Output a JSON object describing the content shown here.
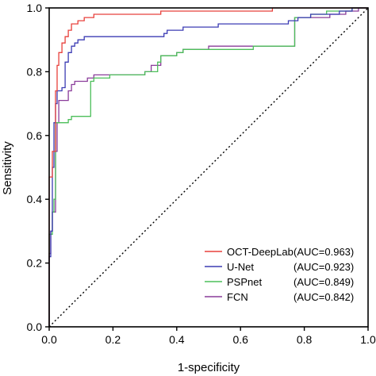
{
  "chart_data": {
    "type": "line",
    "xlabel": "1-specificity",
    "ylabel": "Sensitivity",
    "xlim": [
      0,
      1
    ],
    "ylim": [
      0,
      1
    ],
    "x_ticks": [
      "0.0",
      "0.2",
      "0.4",
      "0.6",
      "0.8",
      "1.0"
    ],
    "y_ticks": [
      "0.0",
      "0.2",
      "0.4",
      "0.6",
      "0.8",
      "1.0"
    ],
    "grid": false,
    "legend_position": "bottom-right",
    "reference_line": {
      "style": "dotted",
      "color": "#000000",
      "points": [
        [
          0,
          0
        ],
        [
          1,
          1
        ]
      ]
    },
    "series": [
      {
        "label_name": "OCT-DeepLab",
        "label_auc": "(AUC=0.963)",
        "color": "#e8413c",
        "points": [
          [
            0,
            0
          ],
          [
            0,
            0.47
          ],
          [
            0.01,
            0.47
          ],
          [
            0.01,
            0.55
          ],
          [
            0.02,
            0.55
          ],
          [
            0.02,
            0.74
          ],
          [
            0.025,
            0.74
          ],
          [
            0.025,
            0.82
          ],
          [
            0.03,
            0.82
          ],
          [
            0.03,
            0.86
          ],
          [
            0.04,
            0.86
          ],
          [
            0.04,
            0.89
          ],
          [
            0.05,
            0.89
          ],
          [
            0.05,
            0.91
          ],
          [
            0.06,
            0.91
          ],
          [
            0.06,
            0.93
          ],
          [
            0.07,
            0.93
          ],
          [
            0.07,
            0.95
          ],
          [
            0.09,
            0.95
          ],
          [
            0.09,
            0.96
          ],
          [
            0.11,
            0.96
          ],
          [
            0.11,
            0.97
          ],
          [
            0.14,
            0.97
          ],
          [
            0.14,
            0.98
          ],
          [
            0.35,
            0.98
          ],
          [
            0.35,
            0.99
          ],
          [
            0.7,
            0.99
          ],
          [
            0.7,
            1.0
          ],
          [
            1,
            1
          ]
        ]
      },
      {
        "label_name": "U-Net",
        "label_auc": "(AUC=0.923)",
        "color": "#3c3cb4",
        "points": [
          [
            0,
            0
          ],
          [
            0,
            0.22
          ],
          [
            0.005,
            0.22
          ],
          [
            0.005,
            0.3
          ],
          [
            0.01,
            0.3
          ],
          [
            0.01,
            0.5
          ],
          [
            0.015,
            0.5
          ],
          [
            0.015,
            0.64
          ],
          [
            0.02,
            0.64
          ],
          [
            0.02,
            0.7
          ],
          [
            0.025,
            0.7
          ],
          [
            0.025,
            0.74
          ],
          [
            0.04,
            0.74
          ],
          [
            0.04,
            0.75
          ],
          [
            0.05,
            0.75
          ],
          [
            0.05,
            0.83
          ],
          [
            0.06,
            0.83
          ],
          [
            0.06,
            0.86
          ],
          [
            0.07,
            0.86
          ],
          [
            0.07,
            0.88
          ],
          [
            0.08,
            0.88
          ],
          [
            0.08,
            0.89
          ],
          [
            0.09,
            0.89
          ],
          [
            0.09,
            0.9
          ],
          [
            0.11,
            0.9
          ],
          [
            0.11,
            0.91
          ],
          [
            0.36,
            0.91
          ],
          [
            0.36,
            0.92
          ],
          [
            0.37,
            0.92
          ],
          [
            0.37,
            0.93
          ],
          [
            0.42,
            0.93
          ],
          [
            0.42,
            0.94
          ],
          [
            0.53,
            0.94
          ],
          [
            0.53,
            0.95
          ],
          [
            0.75,
            0.95
          ],
          [
            0.75,
            0.96
          ],
          [
            0.78,
            0.96
          ],
          [
            0.78,
            0.97
          ],
          [
            0.82,
            0.97
          ],
          [
            0.82,
            0.98
          ],
          [
            0.91,
            0.98
          ],
          [
            0.91,
            0.99
          ],
          [
            0.95,
            0.99
          ],
          [
            0.95,
            1.0
          ],
          [
            1,
            1
          ]
        ]
      },
      {
        "label_name": "PSPnet",
        "label_auc": "(AUC=0.849)",
        "color": "#4cbf5a",
        "points": [
          [
            0,
            0
          ],
          [
            0,
            0.29
          ],
          [
            0.01,
            0.29
          ],
          [
            0.01,
            0.36
          ],
          [
            0.015,
            0.36
          ],
          [
            0.015,
            0.4
          ],
          [
            0.02,
            0.4
          ],
          [
            0.02,
            0.64
          ],
          [
            0.06,
            0.64
          ],
          [
            0.06,
            0.65
          ],
          [
            0.07,
            0.65
          ],
          [
            0.07,
            0.66
          ],
          [
            0.13,
            0.66
          ],
          [
            0.13,
            0.77
          ],
          [
            0.14,
            0.77
          ],
          [
            0.14,
            0.78
          ],
          [
            0.19,
            0.78
          ],
          [
            0.19,
            0.79
          ],
          [
            0.3,
            0.79
          ],
          [
            0.3,
            0.8
          ],
          [
            0.34,
            0.8
          ],
          [
            0.34,
            0.83
          ],
          [
            0.35,
            0.83
          ],
          [
            0.35,
            0.85
          ],
          [
            0.4,
            0.85
          ],
          [
            0.4,
            0.86
          ],
          [
            0.42,
            0.86
          ],
          [
            0.42,
            0.87
          ],
          [
            0.64,
            0.87
          ],
          [
            0.64,
            0.88
          ],
          [
            0.77,
            0.88
          ],
          [
            0.77,
            0.97
          ],
          [
            0.82,
            0.97
          ],
          [
            0.82,
            0.98
          ],
          [
            0.87,
            0.98
          ],
          [
            0.87,
            0.99
          ],
          [
            0.95,
            0.99
          ],
          [
            0.95,
            1.0
          ],
          [
            1,
            1
          ]
        ]
      },
      {
        "label_name": "FCN",
        "label_auc": "(AUC=0.842)",
        "color": "#8a3c9a",
        "points": [
          [
            0,
            0
          ],
          [
            0,
            0.23
          ],
          [
            0.005,
            0.23
          ],
          [
            0.005,
            0.3
          ],
          [
            0.01,
            0.3
          ],
          [
            0.01,
            0.36
          ],
          [
            0.02,
            0.36
          ],
          [
            0.02,
            0.55
          ],
          [
            0.025,
            0.55
          ],
          [
            0.025,
            0.64
          ],
          [
            0.03,
            0.64
          ],
          [
            0.03,
            0.71
          ],
          [
            0.06,
            0.71
          ],
          [
            0.06,
            0.74
          ],
          [
            0.07,
            0.74
          ],
          [
            0.07,
            0.76
          ],
          [
            0.08,
            0.76
          ],
          [
            0.08,
            0.77
          ],
          [
            0.12,
            0.77
          ],
          [
            0.12,
            0.78
          ],
          [
            0.14,
            0.78
          ],
          [
            0.14,
            0.79
          ],
          [
            0.3,
            0.79
          ],
          [
            0.3,
            0.8
          ],
          [
            0.32,
            0.8
          ],
          [
            0.32,
            0.82
          ],
          [
            0.35,
            0.82
          ],
          [
            0.35,
            0.85
          ],
          [
            0.4,
            0.85
          ],
          [
            0.4,
            0.86
          ],
          [
            0.42,
            0.86
          ],
          [
            0.42,
            0.87
          ],
          [
            0.5,
            0.87
          ],
          [
            0.5,
            0.88
          ],
          [
            0.77,
            0.88
          ],
          [
            0.77,
            0.97
          ],
          [
            0.88,
            0.97
          ],
          [
            0.88,
            0.98
          ],
          [
            0.93,
            0.98
          ],
          [
            0.93,
            0.99
          ],
          [
            0.97,
            0.99
          ],
          [
            0.97,
            1.0
          ],
          [
            1,
            1
          ]
        ]
      }
    ]
  }
}
